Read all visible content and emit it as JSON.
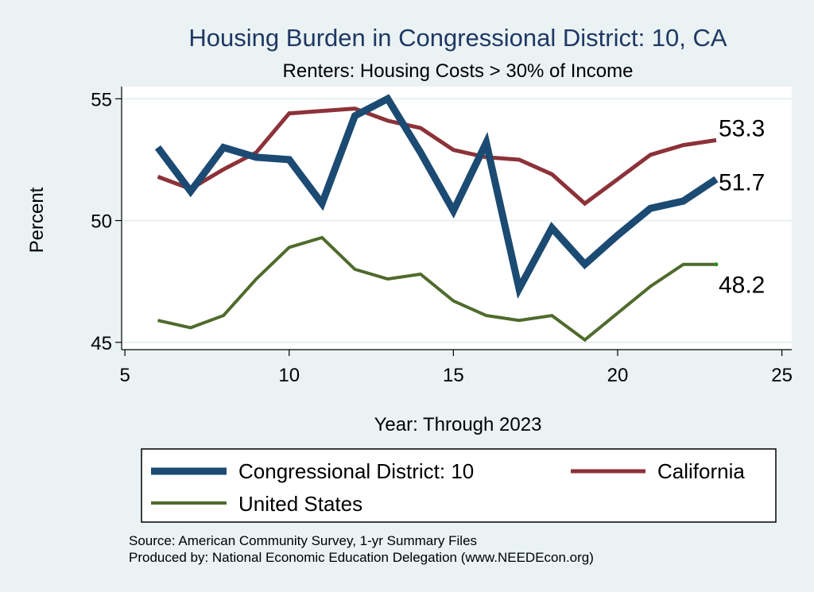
{
  "chart_data": {
    "type": "line",
    "title": "Housing Burden in Congressional District:  10, CA",
    "subtitle": "Renters: Housing Costs > 30% of Income",
    "xlabel": "Year: Through 2023",
    "ylabel": "Percent",
    "xlim": [
      4.9,
      25.3
    ],
    "ylim": [
      44.7,
      55.5
    ],
    "xticks": [
      5,
      10,
      15,
      20,
      25
    ],
    "yticks": [
      45,
      50,
      55
    ],
    "grid": true,
    "legend_position": "bottom",
    "series": [
      {
        "name": "Congressional District:  10",
        "color": "#1b4a72",
        "x": [
          6,
          7,
          8,
          9,
          10,
          11,
          12,
          13,
          14,
          15,
          16,
          17,
          18,
          19,
          20,
          21,
          22,
          23
        ],
        "values": [
          53.0,
          51.2,
          53.0,
          52.6,
          52.5,
          50.7,
          54.3,
          55.0,
          52.8,
          50.4,
          53.2,
          47.2,
          49.7,
          48.2,
          49.4,
          50.5,
          50.8,
          51.7
        ],
        "end_label": "51.7"
      },
      {
        "name": "California",
        "color": "#8c3238",
        "x": [
          6,
          7,
          8,
          9,
          10,
          11,
          12,
          13,
          14,
          15,
          16,
          17,
          18,
          19,
          20,
          21,
          22,
          23
        ],
        "values": [
          51.8,
          51.3,
          52.1,
          52.8,
          54.4,
          54.5,
          54.6,
          54.1,
          53.8,
          52.9,
          52.6,
          52.5,
          51.9,
          50.7,
          51.7,
          52.7,
          53.1,
          53.3
        ],
        "end_label": "53.3"
      },
      {
        "name": "United States",
        "color": "#4e6b2c",
        "x": [
          6,
          7,
          8,
          9,
          10,
          11,
          12,
          13,
          14,
          15,
          16,
          17,
          18,
          19,
          20,
          21,
          22,
          23
        ],
        "values": [
          45.9,
          45.6,
          46.1,
          47.6,
          48.9,
          49.3,
          48.0,
          47.6,
          47.8,
          46.7,
          46.1,
          45.9,
          46.1,
          45.1,
          46.2,
          47.3,
          48.2,
          48.2
        ],
        "end_label": "48.2"
      }
    ],
    "source_lines": [
      "Source: American Community Survey, 1-yr Summary Files",
      "Produced by: National Economic Education Delegation (www.NEEDEcon.org)"
    ]
  }
}
